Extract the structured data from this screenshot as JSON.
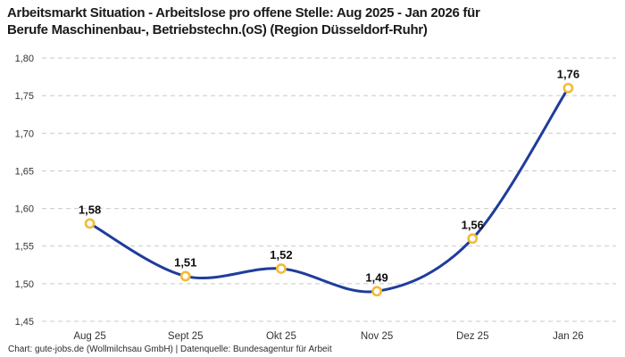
{
  "title": {
    "line1": "Arbeitsmarkt Situation - Arbeitslose pro offene Stelle: Aug 2025 - Jan 2026 für",
    "line2": "Berufe Maschinenbau-, Betriebstechn.(oS) (Region Düsseldorf-Ruhr)"
  },
  "footer": {
    "text": "Chart: gute-jobs.de (Wollmilchsau GmbH) | Datenquelle: Bundesagentur für Arbeit"
  },
  "colors": {
    "line": "#1f3c9c",
    "marker_ring": "#f3bb35",
    "marker_fill": "#ffffff",
    "grid": "#c9c9c9",
    "tick_label": "#333333",
    "point_label": "#0d0d0d",
    "title": "#1a1a1a",
    "background": "#ffffff"
  },
  "chart_data": {
    "type": "line",
    "title": "Arbeitsmarkt Situation - Arbeitslose pro offene Stelle: Aug 2025 - Jan 2026 für Berufe Maschinenbau-, Betriebstechn.(oS) (Region Düsseldorf-Ruhr)",
    "categories": [
      "Aug 25",
      "Sept 25",
      "Okt 25",
      "Nov 25",
      "Dez 25",
      "Jan 26"
    ],
    "values": [
      1.58,
      1.51,
      1.52,
      1.49,
      1.56,
      1.76
    ],
    "point_labels": [
      "1,58",
      "1,51",
      "1,52",
      "1,49",
      "1,56",
      "1,76"
    ],
    "xlabel": "",
    "ylabel": "",
    "ylim": [
      1.45,
      1.8
    ],
    "ytick_step": 0.05,
    "ytick_labels": [
      "1,45",
      "1,50",
      "1,55",
      "1,60",
      "1,65",
      "1,70",
      "1,75",
      "1,80"
    ],
    "grid": "horizontal-dashed",
    "legend": "none",
    "smooth": true,
    "line_color": "#1f3c9c",
    "marker_color": "#f3bb35"
  }
}
